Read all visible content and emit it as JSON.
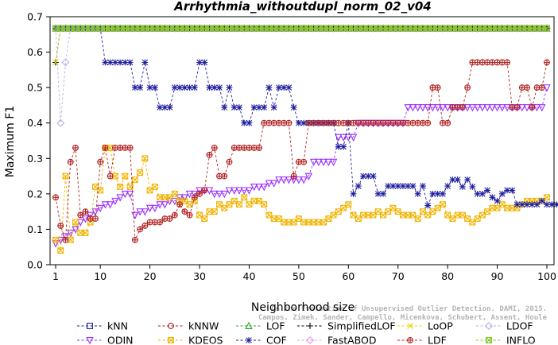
{
  "chart_data": {
    "type": "line",
    "title": "Arrhythmia_withoutdupl_norm_02_v04",
    "xlabel": "Neighborhood size",
    "ylabel": "Maximum F1",
    "xlim": [
      1,
      100
    ],
    "ylim": [
      0.0,
      0.7
    ],
    "xticks": [
      "1",
      "10",
      "20",
      "30",
      "40",
      "50",
      "60",
      "70",
      "80",
      "90",
      "100"
    ],
    "yticks": [
      "0.0",
      "0.1",
      "0.2",
      "0.3",
      "0.4",
      "0.5",
      "0.6",
      "0.7"
    ],
    "watermark": [
      "Campos, Zimek, Sander, Campello, Micenkova, Schubert, Assent, Houle",
      "On the Evaluation of Unsupervised Outlier Detection. DAMI, 2015."
    ],
    "legend_position": "bottom",
    "series": [
      {
        "name": "kNN",
        "color": "#1f1fa0",
        "marker": "square",
        "segments": [
          {
            "x0": 1,
            "values": [
              0.667
            ]
          },
          {
            "x0": 2,
            "x1": 100,
            "const": 0.667
          }
        ]
      },
      {
        "name": "kNNW",
        "color": "#b22222",
        "marker": "circle",
        "segments": [
          {
            "x0": 1,
            "values": [
              0.667
            ]
          },
          {
            "x0": 2,
            "x1": 100,
            "const": 0.667
          }
        ]
      },
      {
        "name": "LOF",
        "color": "#2ca02c",
        "marker": "triangle-up",
        "segments": [
          {
            "x0": 1,
            "values": [
              0.667
            ]
          },
          {
            "x0": 2,
            "x1": 100,
            "const": 0.667
          }
        ]
      },
      {
        "name": "SimplifiedLOF",
        "color": "#000000",
        "marker": "plus",
        "segments": [
          {
            "x0": 1,
            "values": [
              0.571,
              0.667
            ]
          },
          {
            "x0": 3,
            "x1": 100,
            "const": 0.667
          }
        ]
      },
      {
        "name": "LoOP",
        "color": "#e6d000",
        "marker": "x",
        "segments": [
          {
            "x0": 1,
            "values": [
              0.571,
              0.667
            ]
          },
          {
            "x0": 3,
            "x1": 100,
            "const": 0.667
          }
        ]
      },
      {
        "name": "LDOF",
        "color": "#b4b4e6",
        "marker": "diamond",
        "segments": [
          {
            "x0": 1,
            "values": [
              0.667,
              0.4,
              0.571,
              0.667
            ]
          },
          {
            "x0": 5,
            "x1": 100,
            "const": 0.667
          }
        ]
      },
      {
        "name": "ODIN",
        "color": "#9b30ff",
        "marker": "triangle-down",
        "segments": [
          {
            "x0": 1,
            "values": [
              0.06,
              0.07,
              0.08,
              0.09,
              0.1,
              0.12,
              0.13,
              0.14,
              0.15,
              0.16,
              0.17,
              0.17,
              0.18,
              0.19,
              0.2,
              0.2,
              0.14,
              0.15,
              0.15,
              0.16,
              0.16,
              0.17,
              0.17,
              0.18,
              0.18,
              0.19,
              0.19,
              0.2,
              0.2,
              0.21,
              0.21,
              0.21,
              0.2,
              0.2,
              0.2,
              0.21,
              0.21,
              0.21,
              0.21,
              0.21,
              0.22,
              0.22,
              0.22,
              0.23,
              0.23,
              0.24,
              0.24,
              0.24,
              0.24,
              0.24,
              0.24,
              0.25,
              0.29,
              0.29,
              0.29,
              0.29,
              0.29,
              0.36,
              0.36,
              0.36,
              0.36,
              0.4,
              0.4,
              0.4,
              0.4,
              0.4,
              0.4,
              0.4,
              0.4,
              0.4,
              0.4
            ]
          },
          {
            "x0": 72,
            "x1": 99,
            "const": 0.444
          },
          {
            "x0": 100,
            "values": [
              0.5
            ]
          }
        ]
      },
      {
        "name": "KDEOS",
        "color": "#f0b400",
        "marker": "square-x",
        "segments": [
          {
            "x0": 1,
            "values": [
              0.07,
              0.04,
              0.25,
              0.07,
              0.12,
              0.09,
              0.09,
              0.12,
              0.22,
              0.21,
              0.33,
              0.33,
              0.25,
              0.22,
              0.25,
              0.22,
              0.24,
              0.26,
              0.3,
              0.21,
              0.22,
              0.19,
              0.19,
              0.19,
              0.2,
              0.18,
              0.18,
              0.17,
              0.18,
              0.14,
              0.13,
              0.15,
              0.15,
              0.17,
              0.16,
              0.17,
              0.18,
              0.17,
              0.19,
              0.17,
              0.18,
              0.18,
              0.17,
              0.14,
              0.13,
              0.13,
              0.12,
              0.12,
              0.12,
              0.13,
              0.12,
              0.12,
              0.12,
              0.12,
              0.12,
              0.13,
              0.14,
              0.15,
              0.16,
              0.17,
              0.14,
              0.13,
              0.14,
              0.14,
              0.14,
              0.15,
              0.14,
              0.15,
              0.16,
              0.15,
              0.14,
              0.14,
              0.14,
              0.13,
              0.15,
              0.14,
              0.15,
              0.16,
              0.17,
              0.14,
              0.13,
              0.14,
              0.14,
              0.13,
              0.12,
              0.13,
              0.14,
              0.15,
              0.16,
              0.16,
              0.17,
              0.16,
              0.16,
              0.16,
              0.17,
              0.18,
              0.18,
              0.18,
              0.18,
              0.19
            ]
          }
        ]
      },
      {
        "name": "COF",
        "color": "#1f1fa0",
        "marker": "asterisk",
        "segments": [
          {
            "x0": 1,
            "x1": 10,
            "const": 0.667
          },
          {
            "x0": 11,
            "values": [
              0.571,
              0.571,
              0.571,
              0.571,
              0.571,
              0.571,
              0.5,
              0.5,
              0.571,
              0.5,
              0.5,
              0.444,
              0.444,
              0.444,
              0.5,
              0.5,
              0.5,
              0.5,
              0.5,
              0.571,
              0.571,
              0.5,
              0.5,
              0.5,
              0.444,
              0.5,
              0.444,
              0.444,
              0.4,
              0.4,
              0.444,
              0.444,
              0.444,
              0.5,
              0.444,
              0.5,
              0.5,
              0.5,
              0.444,
              0.4,
              0.4,
              0.4,
              0.4,
              0.4,
              0.4,
              0.4,
              0.4,
              0.333,
              0.333,
              0.4,
              0.2,
              0.222,
              0.25,
              0.25,
              0.25,
              0.2,
              0.2,
              0.222,
              0.222,
              0.222,
              0.222,
              0.222,
              0.222,
              0.2,
              0.222,
              0.167,
              0.2,
              0.2,
              0.2,
              0.222,
              0.24,
              0.24,
              0.22,
              0.24,
              0.22,
              0.2,
              0.2,
              0.21,
              0.19,
              0.18,
              0.2,
              0.21,
              0.21,
              0.17,
              0.17,
              0.17,
              0.17,
              0.17,
              0.18,
              0.17,
              0.17,
              0.17,
              0.17,
              0.17,
              0.17,
              0.17,
              0.17,
              0.2,
              0.17,
              0.16
            ]
          }
        ]
      },
      {
        "name": "FastABOD",
        "color": "#e89ae8",
        "marker": "diamond",
        "segments": [
          {
            "x0": 1,
            "values": [
              0.667
            ]
          },
          {
            "x0": 2,
            "x1": 100,
            "const": 0.667
          }
        ]
      },
      {
        "name": "LDF",
        "color": "#b22222",
        "marker": "circle-plus",
        "segments": [
          {
            "x0": 1,
            "values": [
              0.19,
              0.11,
              0.07,
              0.29,
              0.33,
              0.14,
              0.15,
              0.13,
              0.13,
              0.29,
              0.33,
              0.25,
              0.33,
              0.33,
              0.33,
              0.33,
              0.07,
              0.1,
              0.11,
              0.12,
              0.12,
              0.12,
              0.13,
              0.13,
              0.14,
              0.17,
              0.15,
              0.14,
              0.19,
              0.2,
              0.21,
              0.31,
              0.33,
              0.25,
              0.25,
              0.29,
              0.33,
              0.33,
              0.33,
              0.33,
              0.33,
              0.33,
              0.4,
              0.4,
              0.4,
              0.4,
              0.4,
              0.4,
              0.25,
              0.29,
              0.29,
              0.4,
              0.4,
              0.4,
              0.4,
              0.4,
              0.4,
              0.4,
              0.4,
              0.4,
              0.4,
              0.4,
              0.4,
              0.4,
              0.4,
              0.4,
              0.4,
              0.4,
              0.4,
              0.4,
              0.4,
              0.4,
              0.4,
              0.4,
              0.4,
              0.4,
              0.5,
              0.5,
              0.4,
              0.4,
              0.444,
              0.444,
              0.444,
              0.5,
              0.571,
              0.571,
              0.571,
              0.571,
              0.571,
              0.571,
              0.571,
              0.571,
              0.444,
              0.444,
              0.5,
              0.5,
              0.444,
              0.5,
              0.5,
              0.571
            ]
          }
        ]
      },
      {
        "name": "INFLO",
        "color": "#7ec820",
        "marker": "square-x",
        "segments": [
          {
            "x0": 1,
            "values": [
              0.667
            ]
          },
          {
            "x0": 2,
            "x1": 100,
            "const": 0.667
          }
        ]
      }
    ]
  }
}
